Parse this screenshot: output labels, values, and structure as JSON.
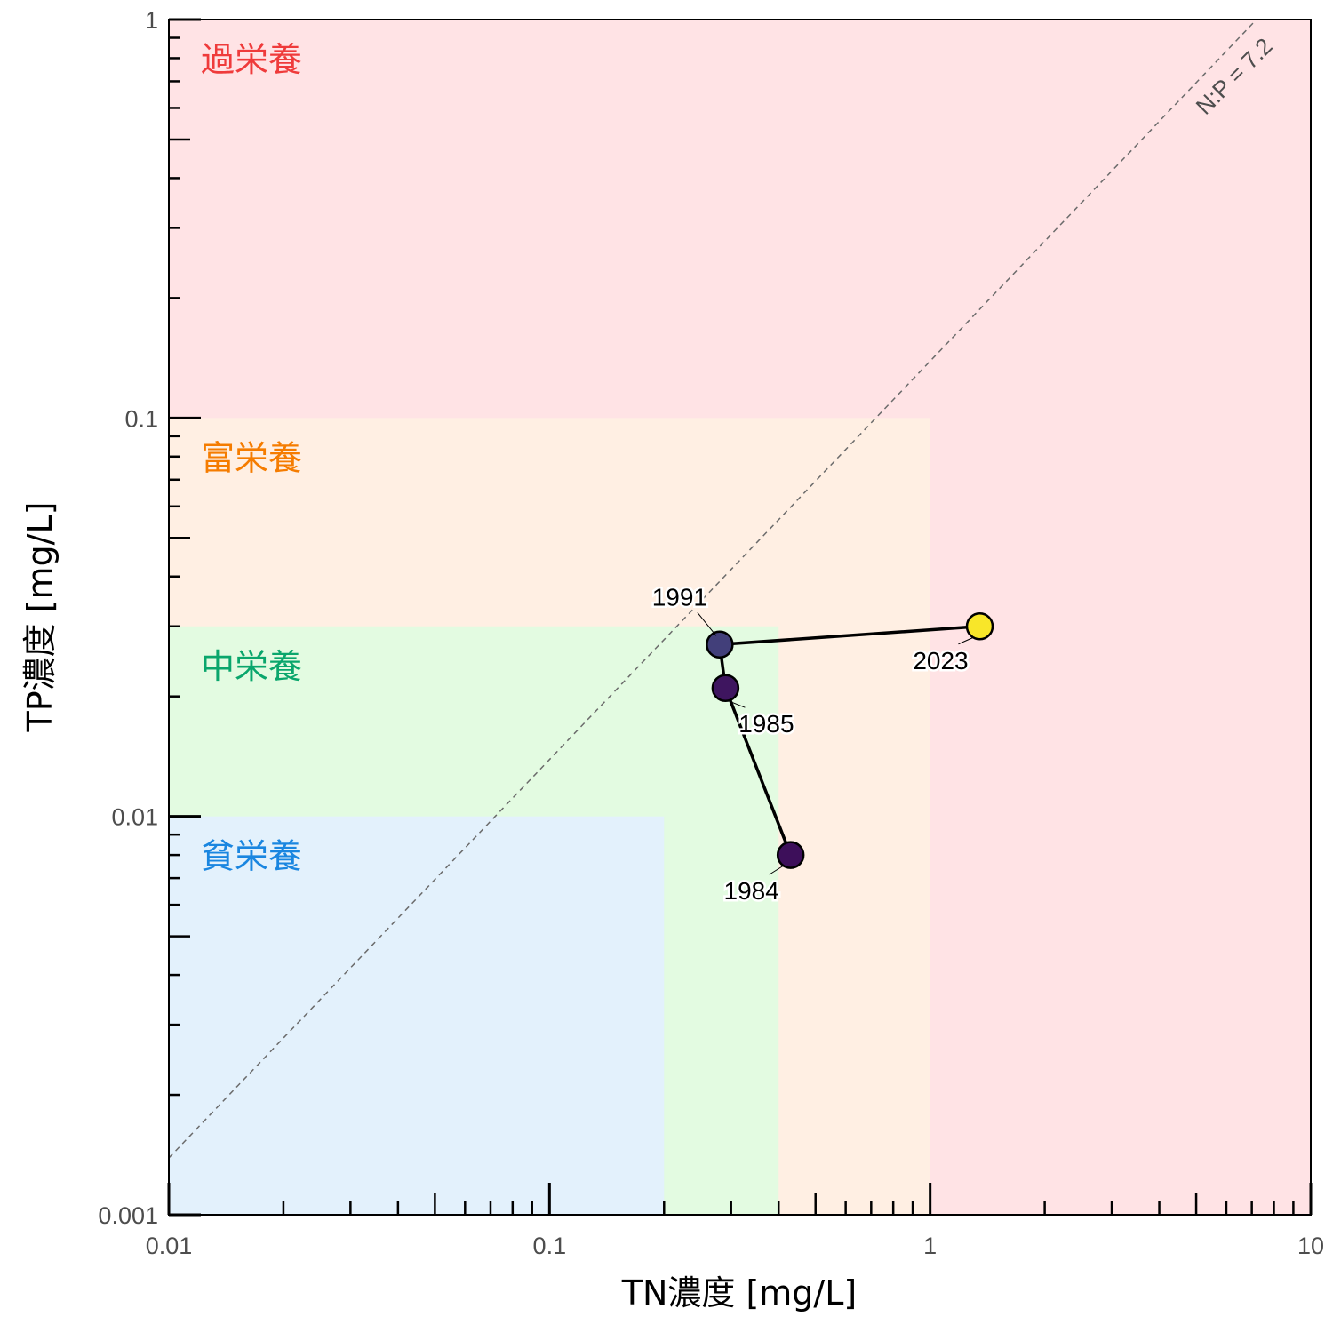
{
  "chart_data": {
    "type": "scatter",
    "xlabel": "TN濃度 [mg/L]",
    "ylabel": "TP濃度 [mg/L]",
    "x_scale": "log",
    "y_scale": "log",
    "xlim": [
      0.01,
      10
    ],
    "ylim": [
      0.001,
      1
    ],
    "x_ticks": [
      {
        "value": 0.01,
        "label": "0.01"
      },
      {
        "value": 0.1,
        "label": "0.1"
      },
      {
        "value": 1,
        "label": "1"
      },
      {
        "value": 10,
        "label": "10"
      }
    ],
    "y_ticks": [
      {
        "value": 0.001,
        "label": "0.001"
      },
      {
        "value": 0.01,
        "label": "0.01"
      },
      {
        "value": 0.1,
        "label": "0.1"
      },
      {
        "value": 1,
        "label": "1"
      }
    ],
    "grid": false,
    "zones": [
      {
        "label": "過栄養",
        "tn_max": 10,
        "tp_max": 1,
        "fill": "#ffe3e5",
        "text_color": "#ef3b3b"
      },
      {
        "label": "富栄養",
        "tn_max": 1,
        "tp_max": 0.1,
        "fill": "#ffefe3",
        "text_color": "#f57c00"
      },
      {
        "label": "中栄養",
        "tn_max": 0.4,
        "tp_max": 0.03,
        "fill": "#e3fbe1",
        "text_color": "#0aa66c"
      },
      {
        "label": "貧栄養",
        "tn_max": 0.2,
        "tp_max": 0.01,
        "fill": "#e3f1fc",
        "text_color": "#1a86e0"
      }
    ],
    "reference_line": {
      "label": "N:P = 7.2",
      "ratio": 7.2,
      "color": "#6b6b6b"
    },
    "series": [
      {
        "points": [
          {
            "year": "1984",
            "tn": 0.43,
            "tp": 0.008,
            "color": "#3d0f5a"
          },
          {
            "year": "1985",
            "tn": 0.29,
            "tp": 0.021,
            "color": "#3e155f"
          },
          {
            "year": "1991",
            "tn": 0.28,
            "tp": 0.027,
            "color": "#423f7a"
          },
          {
            "year": "2023",
            "tn": 1.35,
            "tp": 0.03,
            "color": "#f8e629"
          }
        ],
        "line_color": "#000000"
      }
    ]
  }
}
